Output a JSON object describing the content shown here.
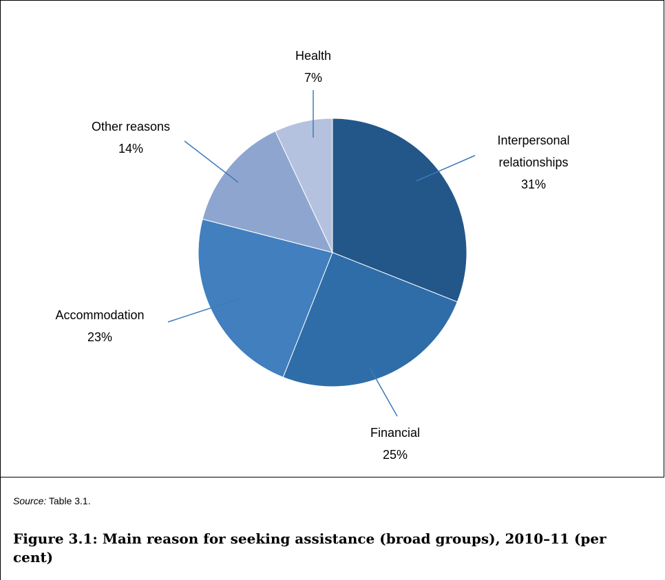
{
  "chart_data": {
    "type": "pie",
    "slices": [
      {
        "label_lines": [
          "Interpersonal",
          "relationships"
        ],
        "value_label": "31%",
        "value": 31,
        "color": "#23578a"
      },
      {
        "label_lines": [
          "Financial"
        ],
        "value_label": "25%",
        "value": 25,
        "color": "#2f6da8"
      },
      {
        "label_lines": [
          "Accommodation"
        ],
        "value_label": "23%",
        "value": 23,
        "color": "#417fbf"
      },
      {
        "label_lines": [
          "Other reasons"
        ],
        "value_label": "14%",
        "value": 14,
        "color": "#8ea6cf"
      },
      {
        "label_lines": [
          "Health"
        ],
        "value_label": "7%",
        "value": 7,
        "color": "#b5c2df"
      }
    ]
  },
  "source": {
    "prefix": "Source:",
    "text": " Table 3.1."
  },
  "caption": "Figure 3.1: Main reason for seeking assistance (broad groups), 2010–11 (per cent)"
}
